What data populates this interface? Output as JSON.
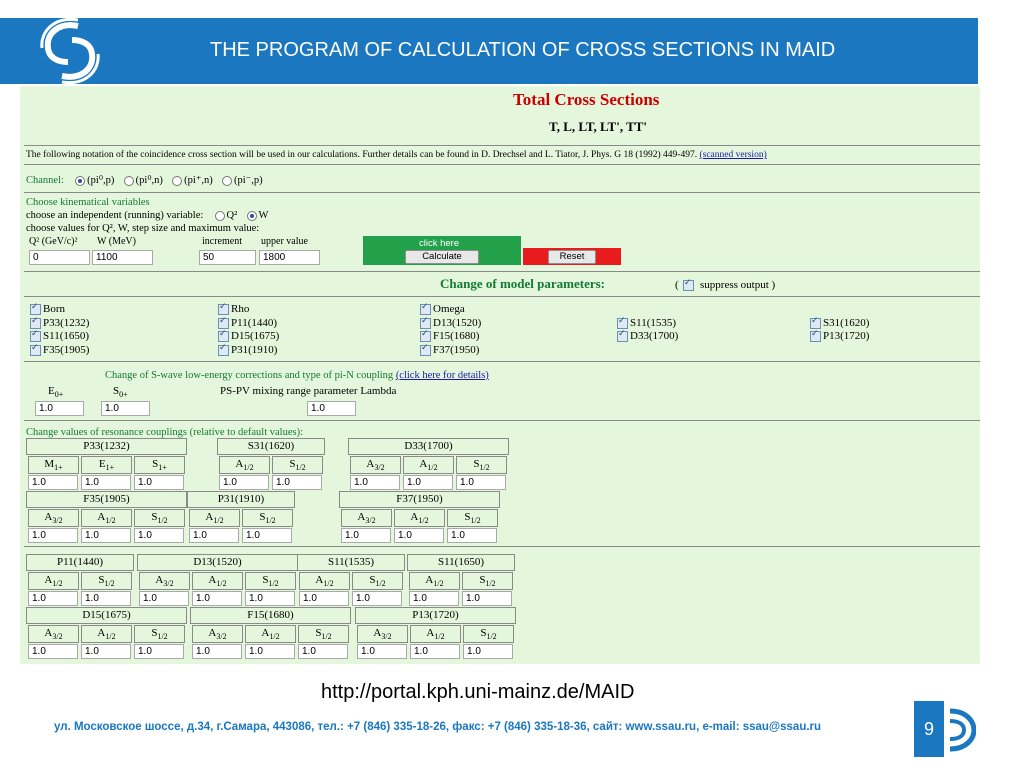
{
  "slide": {
    "title": "THE PROGRAM OF CALCULATION OF CROSS SECTIONS IN MAID",
    "url": "http://portal.kph.uni-mainz.de/MAID",
    "footer": "ул. Московское шоссе, д.34, г.Самара, 443086, тел.: +7 (846) 335-18-26, факс: +7 (846) 335-18-36, сайт: www.ssau.ru, e-mail: ssau@ssau.ru",
    "page_number": "9"
  },
  "form": {
    "title": "Total Cross Sections",
    "subtitle": "T, L, LT, LT', TT'",
    "notation_text": "The following notation of the coincidence cross section will be used in our calculations. Further details can be found in D. Drechsel and L. Tiator, J. Phys. G 18 (1992) 449-497.",
    "notation_link": "(scanned version)",
    "channel": {
      "label": "Channel:",
      "options": [
        "(pi⁰,p)",
        "(pi⁰,n)",
        "(pi⁺,n)",
        "(pi⁻,p)"
      ],
      "selected": "(pi⁰,p)"
    },
    "kin": {
      "heading": "Choose kinematical variables",
      "independent_label": "choose an independent (running) variable:",
      "opt_q2": "Q²",
      "opt_w": "W",
      "values_label": "choose values for Q², W, step size and maximum value:",
      "q2_label": "Q² (GeV/c)²",
      "w_label": "W (MeV)",
      "increment_label": "increment",
      "upper_label": "upper value",
      "q2_value": "0",
      "w_value": "1100",
      "increment_value": "50",
      "upper_value": "1800"
    },
    "click_here": "click here",
    "calculate": "Calculate",
    "reset": "Reset",
    "model": {
      "heading": "Change of model parameters:",
      "suppress_open": "(",
      "suppress_label": "suppress output )",
      "checkboxes": [
        "Born",
        "Rho",
        "Omega",
        "P33(1232)",
        "P11(1440)",
        "D13(1520)",
        "S11(1535)",
        "S31(1620)",
        "S11(1650)",
        "D15(1675)",
        "F15(1680)",
        "D33(1700)",
        "P13(1720)",
        "F35(1905)",
        "P31(1910)",
        "F37(1950)"
      ]
    },
    "swave": {
      "heading": "Change of S-wave low-energy corrections and type of pi-N coupling",
      "link": "(click here for details)",
      "e0": "E",
      "e0_sub": "0+",
      "s0": "S",
      "s0_sub": "0+",
      "lambda_label": "PS-PV mixing range parameter Lambda",
      "e0_value": "1.0",
      "s0_value": "1.0",
      "lambda_value": "1.0"
    },
    "couplings": {
      "heading": "Change values of resonance couplings (relative to default values):",
      "value": "1.0",
      "r1": [
        "P33(1232)",
        "S31(1620)",
        "D33(1700)"
      ],
      "r2": [
        "F35(1905)",
        "P31(1910)",
        "F37(1950)"
      ],
      "r3": [
        "P11(1440)",
        "D13(1520)",
        "S11(1535)",
        "S11(1650)"
      ],
      "r4": [
        "D15(1675)",
        "F15(1680)",
        "P13(1720)"
      ],
      "M": "M",
      "E": "E",
      "S": "S",
      "A": "A",
      "sub_1p": "1+",
      "sub_12": "1/2",
      "sub_32": "3/2"
    }
  },
  "colors": {
    "header": "#1a77c0",
    "panel": "#e4f6dc",
    "title_red": "#cc0000",
    "green": "#23a04a",
    "red": "#e81c1c"
  }
}
